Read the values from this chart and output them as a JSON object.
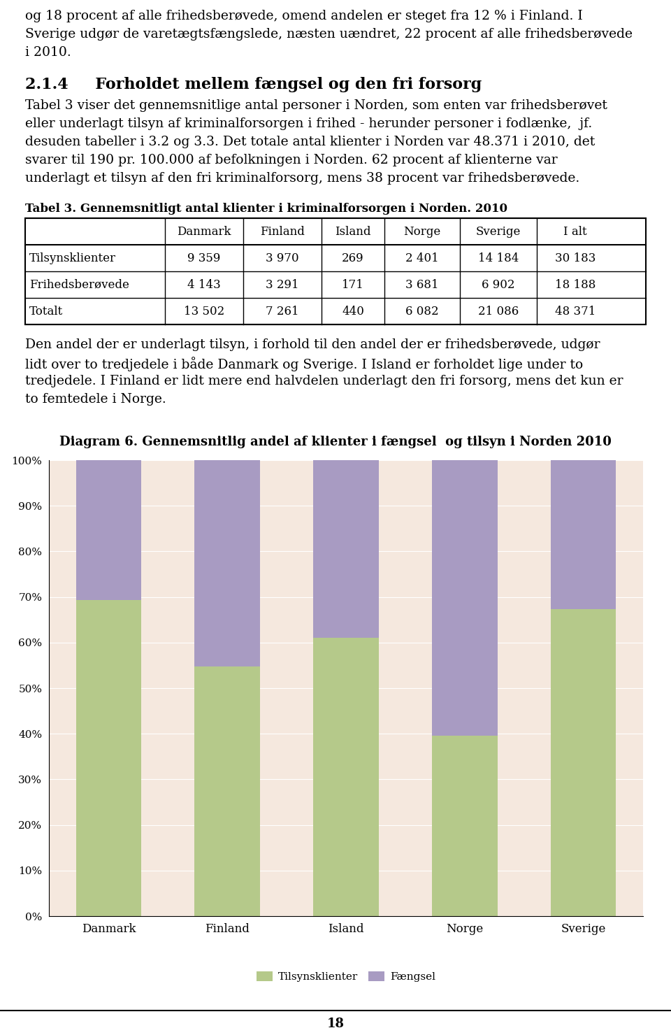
{
  "para1_lines": [
    "og 18 procent af alle frihedsberøvede, omend andelen er steget fra 12 % i Finland. I",
    "Sverige udgør de varetægtsfængslede, næsten uændret, 22 procent af alle frihedsberøvede",
    "i 2010."
  ],
  "heading": "2.1.4     Forholdet mellem fængsel og den fri forsorg",
  "para2_lines": [
    "Tabel 3 viser det gennemsnitlige antal personer i Norden, som enten var frihedsberøvet",
    "eller underlagt tilsyn af kriminalforsorgen i frihed - herunder personer i fodlænke,  jf.",
    "desuden tabeller i 3.2 og 3.3. Det totale antal klienter i Norden var 48.371 i 2010, det",
    "svarer til 190 pr. 100.000 af befolkningen i Norden. 62 procent af klienterne var",
    "underlagt et tilsyn af den fri kriminalforsorg, mens 38 procent var frihedsberøvede."
  ],
  "table_title": "Tabel 3. Gennemsnitligt antal klienter i kriminalforsorgen i Norden. 2010",
  "table_cols": [
    "",
    "Danmark",
    "Finland",
    "Island",
    "Norge",
    "Sverige",
    "I alt"
  ],
  "table_rows": [
    [
      "Tilsynsklienter",
      "9 359",
      "3 970",
      "269",
      "2 401",
      "14 184",
      "30 183"
    ],
    [
      "Frihedsberøvede",
      "4 143",
      "3 291",
      "171",
      "3 681",
      "6 902",
      "18 188"
    ],
    [
      "Totalt",
      "13 502",
      "7 261",
      "440",
      "6 082",
      "21 086",
      "48 371"
    ]
  ],
  "para3_lines": [
    "Den andel der er underlagt tilsyn, i forhold til den andel der er frihedsberøvede, udgør",
    "lidt over to tredjedele i både Danmark og Sverige. I Island er forholdet lige under to",
    "tredjedele. I Finland er lidt mere end halvdelen underlagt den fri forsorg, mens det kun er",
    "to femtedele i Norge."
  ],
  "chart_title": "Diagram 6. Gennemsnitlig andel af klienter i fængsel  og tilsyn i Norden 2010",
  "countries": [
    "Danmark",
    "Finland",
    "Island",
    "Norge",
    "Sverige"
  ],
  "tilsyns_pct": [
    69.3,
    54.7,
    61.1,
    39.5,
    67.3
  ],
  "faengsel_pct": [
    30.7,
    45.3,
    38.9,
    60.5,
    32.7
  ],
  "color_tilsyns": "#b5c98a",
  "color_faengsel": "#a89bc2",
  "color_background": "#f5e8de",
  "legend_tilsyns": "Tilsynsklienter",
  "legend_faengsel": "Fængsel",
  "page_number": "18",
  "text_fontsize": 13.5,
  "heading_fontsize": 16,
  "table_fontsize": 12,
  "chart_title_fontsize": 13
}
